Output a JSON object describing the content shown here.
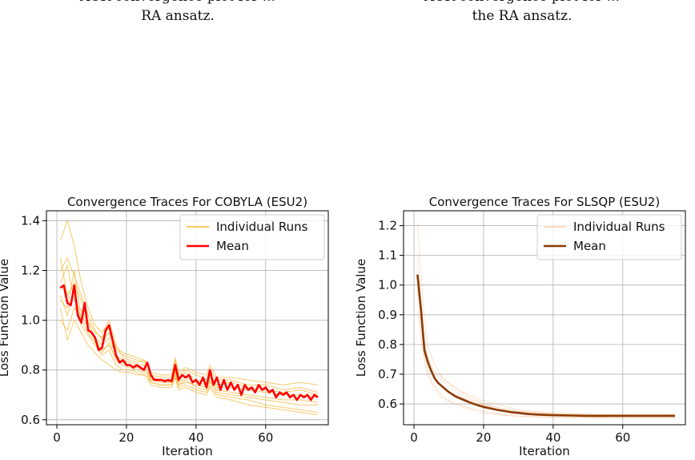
{
  "captions": {
    "left_line1": "ACR convergence plot for ...",
    "left_line2": "RA ansatz.",
    "right_line1": "ACR convergence plot for ...",
    "right_line2": "the RA ansatz."
  },
  "colors": {
    "cobyla_runs": "#f7b73a",
    "cobyla_mean": "#ff0000",
    "slsqp_runs": "#f2b078",
    "slsqp_mean": "#8b3a03",
    "grid": "#b0b0b0"
  },
  "chart_data": [
    {
      "type": "line",
      "title": "Convergence Traces For COBYLA (ESU2)",
      "xlabel": "Iteration",
      "ylabel": "Loss Function Value",
      "xlim": [
        -3,
        78
      ],
      "ylim": [
        0.58,
        1.44
      ],
      "xticks": [
        0,
        20,
        40,
        60
      ],
      "yticks": [
        0.6,
        0.8,
        1.0,
        1.2,
        1.4
      ],
      "ytick_labels": [
        "0.6",
        "0.8",
        "1.0",
        "1.2",
        "1.4"
      ],
      "grid": true,
      "legend_position": "top-right",
      "legend": [
        "Individual Runs",
        "Mean"
      ],
      "mean": {
        "name": "Mean",
        "x": [
          1,
          2,
          3,
          4,
          5,
          6,
          7,
          8,
          9,
          10,
          11,
          12,
          13,
          14,
          15,
          16,
          17,
          18,
          19,
          20,
          21,
          22,
          23,
          24,
          25,
          26,
          27,
          28,
          29,
          30,
          31,
          32,
          33,
          34,
          35,
          36,
          37,
          38,
          39,
          40,
          41,
          42,
          43,
          44,
          45,
          46,
          47,
          48,
          49,
          50,
          51,
          52,
          53,
          54,
          55,
          56,
          57,
          58,
          59,
          60,
          61,
          62,
          63,
          64,
          65,
          66,
          67,
          68,
          69,
          70,
          71,
          72,
          73,
          74,
          75
        ],
        "values": [
          1.13,
          1.14,
          1.07,
          1.06,
          1.14,
          1.02,
          0.99,
          1.07,
          0.96,
          0.95,
          0.93,
          0.88,
          0.89,
          0.96,
          0.98,
          0.92,
          0.86,
          0.83,
          0.84,
          0.82,
          0.82,
          0.81,
          0.82,
          0.81,
          0.8,
          0.83,
          0.78,
          0.76,
          0.76,
          0.76,
          0.755,
          0.76,
          0.755,
          0.82,
          0.76,
          0.78,
          0.77,
          0.78,
          0.75,
          0.76,
          0.74,
          0.77,
          0.73,
          0.8,
          0.74,
          0.77,
          0.72,
          0.76,
          0.72,
          0.75,
          0.72,
          0.74,
          0.7,
          0.74,
          0.72,
          0.73,
          0.71,
          0.74,
          0.72,
          0.73,
          0.71,
          0.72,
          0.69,
          0.71,
          0.7,
          0.71,
          0.69,
          0.7,
          0.68,
          0.7,
          0.69,
          0.7,
          0.68,
          0.7,
          0.69
        ]
      },
      "runs": [
        {
          "x": [
            1,
            3,
            5,
            7,
            9,
            11,
            13,
            15,
            17,
            19,
            21,
            23,
            25,
            26,
            27,
            30,
            33,
            34,
            35,
            37,
            40,
            43,
            44,
            46,
            50,
            55,
            60,
            65,
            70,
            75
          ],
          "values": [
            1.32,
            1.4,
            1.3,
            1.15,
            1.05,
            0.98,
            0.95,
            1.0,
            0.9,
            0.85,
            0.84,
            0.83,
            0.84,
            0.82,
            0.78,
            0.77,
            0.77,
            0.84,
            0.78,
            0.8,
            0.78,
            0.76,
            0.8,
            0.76,
            0.76,
            0.74,
            0.74,
            0.72,
            0.73,
            0.71
          ]
        },
        {
          "x": [
            1,
            3,
            5,
            7,
            9,
            11,
            13,
            15,
            17,
            19,
            21,
            23,
            25,
            26,
            27,
            30,
            33,
            34,
            35,
            37,
            40,
            43,
            44,
            46,
            50,
            55,
            60,
            65,
            70,
            75
          ],
          "values": [
            1.05,
            0.92,
            1.0,
            0.95,
            0.9,
            0.87,
            0.84,
            0.82,
            0.8,
            0.79,
            0.79,
            0.78,
            0.78,
            0.77,
            0.75,
            0.74,
            0.74,
            0.78,
            0.73,
            0.74,
            0.72,
            0.71,
            0.74,
            0.7,
            0.69,
            0.68,
            0.66,
            0.65,
            0.64,
            0.63
          ]
        },
        {
          "x": [
            1,
            3,
            5,
            7,
            9,
            11,
            13,
            15,
            17,
            19,
            21,
            23,
            25,
            26,
            27,
            30,
            33,
            34,
            35,
            37,
            40,
            43,
            44,
            46,
            50,
            55,
            60,
            65,
            70,
            75
          ],
          "values": [
            1.2,
            1.25,
            1.18,
            1.1,
            1.02,
            0.96,
            0.92,
            0.95,
            0.88,
            0.86,
            0.85,
            0.84,
            0.83,
            0.82,
            0.77,
            0.76,
            0.76,
            0.83,
            0.77,
            0.79,
            0.76,
            0.75,
            0.78,
            0.74,
            0.75,
            0.73,
            0.72,
            0.71,
            0.72,
            0.7
          ]
        },
        {
          "x": [
            1,
            3,
            5,
            7,
            9,
            11,
            13,
            15,
            17,
            19,
            21,
            23,
            25,
            26,
            27,
            30,
            33,
            34,
            35,
            37,
            40,
            43,
            44,
            46,
            50,
            55,
            60,
            65,
            70,
            75
          ],
          "values": [
            1.1,
            1.02,
            1.12,
            0.98,
            0.94,
            0.9,
            0.86,
            0.88,
            0.82,
            0.8,
            0.8,
            0.79,
            0.78,
            0.77,
            0.74,
            0.73,
            0.73,
            0.77,
            0.72,
            0.73,
            0.71,
            0.7,
            0.73,
            0.69,
            0.68,
            0.66,
            0.65,
            0.64,
            0.63,
            0.62
          ]
        },
        {
          "x": [
            1,
            3,
            5,
            7,
            9,
            11,
            13,
            15,
            17,
            19,
            21,
            23,
            25,
            26,
            27,
            30,
            33,
            34,
            35,
            37,
            40,
            43,
            44,
            46,
            50,
            55,
            60,
            65,
            70,
            75
          ],
          "values": [
            1.15,
            1.22,
            1.08,
            1.04,
            0.99,
            0.93,
            0.9,
            0.93,
            0.86,
            0.84,
            0.83,
            0.82,
            0.82,
            0.8,
            0.76,
            0.76,
            0.75,
            0.81,
            0.75,
            0.77,
            0.75,
            0.74,
            0.77,
            0.73,
            0.73,
            0.72,
            0.71,
            0.7,
            0.7,
            0.69
          ]
        },
        {
          "x": [
            1,
            3,
            5,
            7,
            9,
            11,
            13,
            15,
            17,
            19,
            21,
            23,
            25,
            26,
            27,
            30,
            33,
            34,
            35,
            37,
            40,
            43,
            44,
            46,
            50,
            55,
            60,
            65,
            70,
            75
          ],
          "values": [
            1.0,
            0.96,
            1.05,
            1.02,
            0.97,
            0.92,
            0.88,
            0.9,
            0.85,
            0.83,
            0.82,
            0.81,
            0.8,
            0.79,
            0.75,
            0.74,
            0.74,
            0.79,
            0.74,
            0.76,
            0.73,
            0.72,
            0.76,
            0.71,
            0.7,
            0.69,
            0.68,
            0.67,
            0.66,
            0.66
          ]
        },
        {
          "x": [
            1,
            3,
            5,
            7,
            9,
            11,
            13,
            15,
            17,
            19,
            21,
            23,
            25,
            26,
            27,
            30,
            33,
            34,
            35,
            37,
            40,
            43,
            44,
            46,
            50,
            55,
            60,
            65,
            70,
            75
          ],
          "values": [
            1.25,
            1.1,
            1.15,
            1.08,
            1.0,
            0.95,
            0.93,
            0.97,
            0.89,
            0.87,
            0.86,
            0.85,
            0.84,
            0.83,
            0.79,
            0.78,
            0.78,
            0.85,
            0.79,
            0.81,
            0.79,
            0.78,
            0.82,
            0.77,
            0.77,
            0.76,
            0.75,
            0.74,
            0.75,
            0.74
          ]
        },
        {
          "x": [
            1,
            3,
            5,
            7,
            9,
            11,
            13,
            15,
            17,
            19,
            21,
            23,
            25,
            26,
            27,
            30,
            33,
            34,
            35,
            37,
            40,
            43,
            44,
            46,
            50,
            55,
            60,
            65,
            70,
            75
          ],
          "values": [
            1.08,
            1.05,
            1.2,
            1.0,
            0.95,
            0.91,
            0.87,
            0.91,
            0.84,
            0.82,
            0.81,
            0.8,
            0.79,
            0.78,
            0.76,
            0.75,
            0.75,
            0.8,
            0.74,
            0.75,
            0.74,
            0.73,
            0.75,
            0.72,
            0.71,
            0.7,
            0.69,
            0.68,
            0.68,
            0.67
          ]
        }
      ]
    },
    {
      "type": "line",
      "title": "Convergence Traces For SLSQP (ESU2)",
      "xlabel": "Iteration",
      "ylabel": "Loss Function Value",
      "xlim": [
        -3,
        78
      ],
      "ylim": [
        0.53,
        1.25
      ],
      "xticks": [
        0,
        20,
        40,
        60
      ],
      "yticks": [
        0.6,
        0.7,
        0.8,
        0.9,
        1.0,
        1.1,
        1.2
      ],
      "ytick_labels": [
        "0.6",
        "0.7",
        "0.8",
        "0.9",
        "1.0",
        "1.1",
        "1.2"
      ],
      "grid": true,
      "legend_position": "top-right",
      "legend": [
        "Individual Runs",
        "Mean"
      ],
      "mean": {
        "name": "Mean",
        "x": [
          1,
          2,
          3,
          4,
          5,
          6,
          7,
          8,
          9,
          10,
          12,
          14,
          16,
          18,
          20,
          22,
          24,
          26,
          28,
          30,
          32,
          34,
          36,
          38,
          40,
          45,
          50,
          55,
          60,
          65,
          70,
          75
        ],
        "values": [
          1.035,
          0.92,
          0.78,
          0.74,
          0.71,
          0.685,
          0.67,
          0.66,
          0.65,
          0.64,
          0.625,
          0.615,
          0.605,
          0.597,
          0.59,
          0.585,
          0.58,
          0.576,
          0.572,
          0.57,
          0.567,
          0.565,
          0.564,
          0.563,
          0.562,
          0.561,
          0.56,
          0.56,
          0.56,
          0.56,
          0.56,
          0.56
        ]
      },
      "runs": [
        {
          "x": [
            1,
            2,
            3,
            4,
            5,
            6,
            8,
            10,
            12,
            15,
            20,
            25,
            30,
            40,
            50,
            60,
            75
          ],
          "values": [
            1.21,
            1.05,
            0.88,
            0.8,
            0.76,
            0.73,
            0.69,
            0.67,
            0.65,
            0.63,
            0.6,
            0.585,
            0.575,
            0.565,
            0.562,
            0.56,
            0.56
          ]
        },
        {
          "x": [
            1,
            2,
            3,
            4,
            5,
            6,
            8,
            10,
            12,
            15,
            20,
            25,
            30,
            40,
            50,
            60,
            75
          ],
          "values": [
            0.98,
            0.86,
            0.76,
            0.71,
            0.68,
            0.66,
            0.63,
            0.61,
            0.6,
            0.59,
            0.575,
            0.565,
            0.56,
            0.555,
            0.553,
            0.552,
            0.552
          ]
        },
        {
          "x": [
            1,
            2,
            3,
            4,
            5,
            6,
            8,
            10,
            12,
            15,
            20,
            25,
            30,
            40,
            50,
            60,
            75
          ],
          "values": [
            1.1,
            0.95,
            0.82,
            0.76,
            0.72,
            0.7,
            0.68,
            0.66,
            0.64,
            0.62,
            0.6,
            0.585,
            0.575,
            0.568,
            0.565,
            0.565,
            0.565
          ]
        },
        {
          "x": [
            1,
            2,
            3,
            4,
            5,
            6,
            8,
            10,
            12,
            15,
            20,
            25,
            30,
            40,
            50,
            60,
            75
          ],
          "values": [
            0.92,
            0.82,
            0.74,
            0.7,
            0.67,
            0.65,
            0.62,
            0.61,
            0.6,
            0.585,
            0.57,
            0.562,
            0.558,
            0.555,
            0.554,
            0.553,
            0.553
          ]
        },
        {
          "x": [
            1,
            2,
            3,
            4,
            5,
            6,
            8,
            10,
            12,
            15,
            20,
            25,
            30,
            40,
            50,
            60,
            75
          ],
          "values": [
            1.05,
            0.9,
            0.79,
            0.74,
            0.71,
            0.69,
            0.66,
            0.64,
            0.63,
            0.615,
            0.595,
            0.58,
            0.572,
            0.565,
            0.562,
            0.561,
            0.561
          ]
        },
        {
          "x": [
            1,
            2,
            3,
            4,
            5,
            6,
            8,
            10,
            12,
            15,
            20,
            25,
            30,
            40,
            50,
            60,
            75
          ],
          "values": [
            0.99,
            0.93,
            0.8,
            0.75,
            0.73,
            0.71,
            0.69,
            0.67,
            0.655,
            0.635,
            0.61,
            0.595,
            0.58,
            0.57,
            0.566,
            0.565,
            0.565
          ]
        }
      ]
    }
  ]
}
